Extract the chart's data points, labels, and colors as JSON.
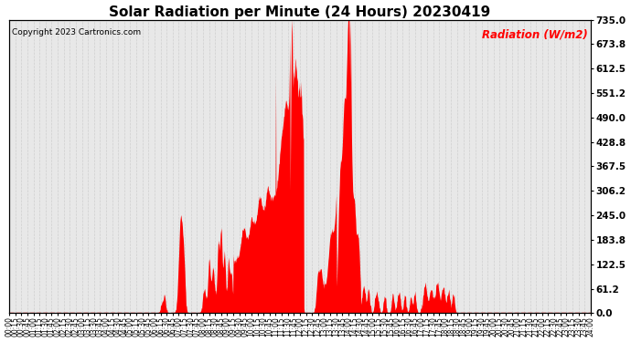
{
  "title": "Solar Radiation per Minute (24 Hours) 20230419",
  "copyright_text": "Copyright 2023 Cartronics.com",
  "ylabel": "Radiation (W/m2)",
  "ylabel_color": "#ff0000",
  "copyright_color": "#000000",
  "title_fontsize": 11,
  "background_color": "#ffffff",
  "plot_bg_color": "#e8e8e8",
  "fill_color": "#ff0000",
  "grid_color": "#ffffff",
  "ylim": [
    0,
    735.0
  ],
  "yticks": [
    0.0,
    61.2,
    122.5,
    183.8,
    245.0,
    306.2,
    367.5,
    428.8,
    490.0,
    551.2,
    612.5,
    673.8,
    735.0
  ],
  "total_minutes": 1440,
  "xstep_minutes": 15,
  "figwidth": 6.9,
  "figheight": 3.75,
  "dpi": 100
}
